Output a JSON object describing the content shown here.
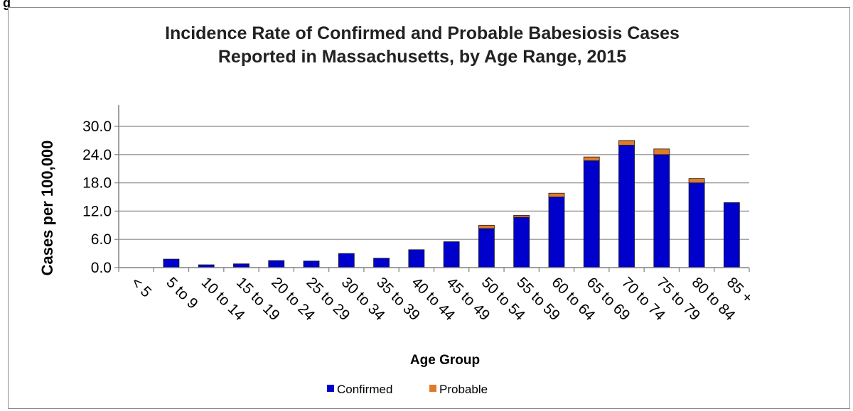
{
  "figure_label": "g",
  "chart_data": {
    "type": "bar",
    "stacked": true,
    "title": "Incidence Rate of Confirmed and Probable Babesiosis Cases",
    "subtitle": "Reported in Massachusetts, by Age Range, 2015",
    "xlabel": "Age Group",
    "ylabel": "Cases per 100,000",
    "ylim": [
      0,
      30
    ],
    "yticks": [
      "0.0",
      "6.0",
      "12.0",
      "18.0",
      "24.0",
      "30.0"
    ],
    "grid": true,
    "legend_position": "bottom",
    "categories": [
      "< 5",
      "5 to 9",
      "10 to 14",
      "15 to 19",
      "20 to 24",
      "25 to 29",
      "30 to 34",
      "35 to 39",
      "40 to 44",
      "45 to 49",
      "50 to 54",
      "55 to 59",
      "60 to 64",
      "65 to 69",
      "70 to 74",
      "75 to 79",
      "80 to 84",
      "85 +"
    ],
    "series": [
      {
        "name": "Confirmed",
        "color": "#0000cc",
        "values": [
          0,
          1.8,
          0.6,
          0.8,
          1.5,
          1.4,
          3.0,
          2.0,
          3.8,
          5.5,
          8.3,
          10.7,
          15.0,
          22.7,
          26.0,
          24.0,
          18.0,
          13.8
        ]
      },
      {
        "name": "Probable",
        "color": "#e07b2a",
        "values": [
          0,
          0,
          0,
          0,
          0,
          0,
          0,
          0,
          0,
          0,
          0.7,
          0.4,
          0.8,
          0.8,
          1.0,
          1.2,
          0.9,
          0
        ]
      }
    ]
  }
}
